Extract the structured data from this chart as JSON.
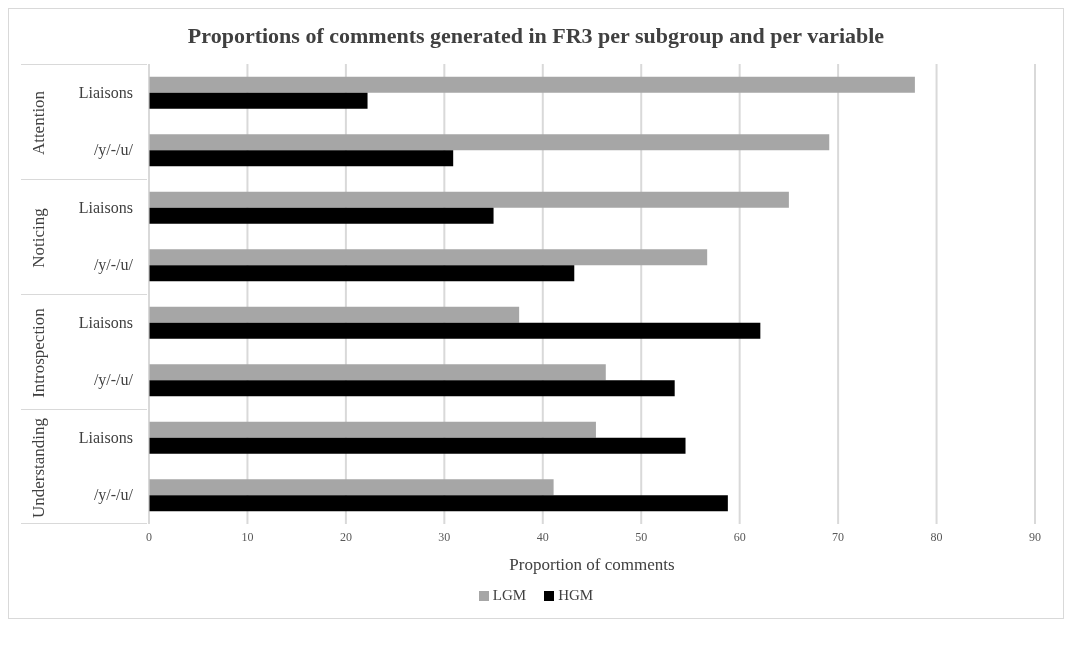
{
  "chart_data": {
    "type": "bar",
    "orientation": "horizontal",
    "title": "Proportions of comments generated in FR3 per subgroup and per variable",
    "xlabel": "Proportion of comments",
    "categories": [
      "Liaisons",
      "/y/-/u/",
      "Liaisons",
      "/y/-/u/",
      "Liaisons",
      "/y/-/u/",
      "Liaisons",
      "/y/-/u/"
    ],
    "annotations": [
      "Attention",
      "Noticing",
      "Introspection",
      "Understanding"
    ],
    "series": [
      {
        "name": "LGM",
        "color": "#a6a6a6",
        "values": [
          77.8,
          69.1,
          65.0,
          56.7,
          37.6,
          46.4,
          45.4,
          41.1
        ]
      },
      {
        "name": "HGM",
        "color": "#000000",
        "values": [
          22.2,
          30.9,
          35.0,
          43.2,
          62.1,
          53.4,
          54.5,
          58.8
        ]
      }
    ],
    "xlim": [
      0,
      90
    ],
    "xticks": [
      0,
      10,
      20,
      30,
      40,
      50,
      60,
      70,
      80,
      90
    ],
    "grid": "x",
    "legend": "bottom"
  }
}
